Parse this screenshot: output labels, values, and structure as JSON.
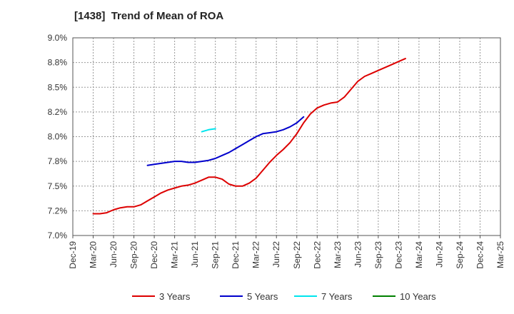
{
  "chart_data": {
    "type": "line",
    "title": "[1438]  Trend of Mean of ROA",
    "xlabel": "",
    "ylabel": "",
    "ylim": [
      7.0,
      9.0
    ],
    "y_ticks": [
      7.0,
      7.25,
      7.5,
      7.75,
      8.0,
      8.25,
      8.5,
      8.75,
      9.0
    ],
    "y_tick_labels": [
      "7.0%",
      "7.2%",
      "7.5%",
      "7.8%",
      "8.0%",
      "8.2%",
      "8.5%",
      "8.8%",
      "9.0%"
    ],
    "x_tick_labels": [
      "Dec-19",
      "Mar-20",
      "Jun-20",
      "Sep-20",
      "Dec-20",
      "Mar-21",
      "Jun-21",
      "Sep-21",
      "Dec-21",
      "Mar-22",
      "Jun-22",
      "Sep-22",
      "Dec-22",
      "Mar-23",
      "Jun-23",
      "Sep-23",
      "Dec-23",
      "Mar-24",
      "Jun-24",
      "Sep-24",
      "Dec-24",
      "Mar-25"
    ],
    "grid": true,
    "legend_position": "bottom",
    "series": [
      {
        "name": "3 Years",
        "color": "#dd0000",
        "start_index": 3,
        "values": [
          7.22,
          7.22,
          7.23,
          7.26,
          7.28,
          7.29,
          7.29,
          7.31,
          7.35,
          7.39,
          7.43,
          7.46,
          7.48,
          7.5,
          7.51,
          7.53,
          7.56,
          7.59,
          7.59,
          7.57,
          7.52,
          7.5,
          7.5,
          7.53,
          7.58,
          7.66,
          7.74,
          7.81,
          7.87,
          7.94,
          8.03,
          8.14,
          8.23,
          8.29,
          8.32,
          8.34,
          8.35,
          8.4,
          8.48,
          8.56,
          8.61,
          8.64,
          8.67,
          8.7,
          8.73,
          8.76,
          8.79
        ]
      },
      {
        "name": "5 Years",
        "color": "#0000cc",
        "start_index": 11,
        "values": [
          7.71,
          7.72,
          7.73,
          7.74,
          7.75,
          7.75,
          7.74,
          7.74,
          7.75,
          7.76,
          7.78,
          7.81,
          7.84,
          7.88,
          7.92,
          7.96,
          8.0,
          8.03,
          8.04,
          8.05,
          8.07,
          8.1,
          8.14,
          8.2
        ]
      },
      {
        "name": "7 Years",
        "color": "#00e5ee",
        "start_index": 19,
        "values": [
          8.05,
          8.07,
          8.08
        ]
      },
      {
        "name": "10 Years",
        "color": "#008000",
        "start_index": 0,
        "values": []
      }
    ]
  }
}
